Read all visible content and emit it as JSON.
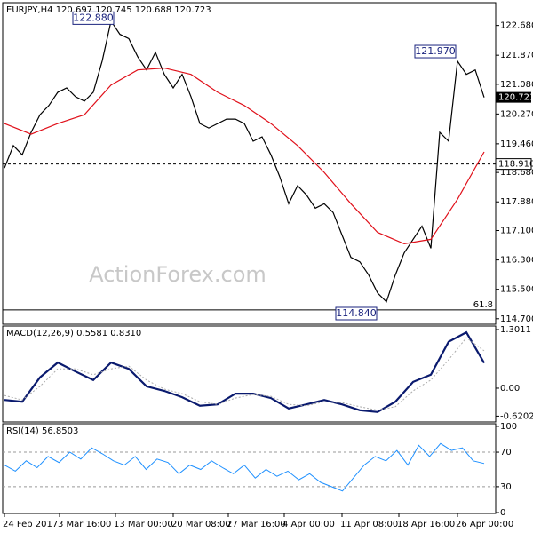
{
  "chart_data": [
    {
      "type": "line",
      "title": "EURJPY,H4  120.697 120.745 120.688 120.723",
      "ylim": [
        114.55,
        123.3
      ],
      "yticks": [
        {
          "value": 122.68,
          "label": "122.680"
        },
        {
          "value": 121.87,
          "label": "121.870"
        },
        {
          "value": 121.08,
          "label": "121.080"
        },
        {
          "value": 120.27,
          "label": "120.270"
        },
        {
          "value": 119.46,
          "label": "119.460"
        },
        {
          "value": 118.68,
          "label": "118.680"
        },
        {
          "value": 117.88,
          "label": "117.880"
        },
        {
          "value": 117.1,
          "label": "117.100"
        },
        {
          "value": 116.3,
          "label": "116.300"
        },
        {
          "value": 115.5,
          "label": "115.500"
        },
        {
          "value": 114.7,
          "label": "114.700"
        }
      ],
      "series": [
        {
          "name": "EURJPY",
          "color": "#000000",
          "values": [
            118.8,
            119.41,
            119.16,
            119.77,
            120.25,
            120.5,
            120.86,
            120.98,
            120.74,
            120.62,
            120.86,
            121.71,
            122.8,
            122.44,
            122.32,
            121.83,
            121.47,
            121.95,
            121.35,
            120.98,
            121.35,
            120.74,
            120.01,
            119.89,
            120.01,
            120.13,
            120.13,
            120.01,
            119.53,
            119.65,
            119.16,
            118.56,
            117.83,
            118.32,
            118.07,
            117.71,
            117.83,
            117.59,
            116.98,
            116.37,
            116.25,
            115.89,
            115.4,
            115.16,
            115.89,
            116.49,
            116.86,
            117.22,
            116.62,
            119.77,
            119.53,
            121.71,
            121.35,
            121.47,
            120.72
          ]
        },
        {
          "name": "MA",
          "color": "#e0101a",
          "values": [
            120.01,
            119.72,
            120.01,
            120.25,
            121.06,
            121.47,
            121.52,
            121.35,
            120.86,
            120.5,
            120.01,
            119.41,
            118.68,
            117.83,
            117.05,
            116.74,
            116.86,
            117.95,
            119.24
          ]
        }
      ],
      "annotations": [
        {
          "value": 122.88,
          "label": "122.880"
        },
        {
          "value": 121.97,
          "label": "121.970"
        },
        {
          "value": 114.84,
          "label": "114.840"
        }
      ],
      "levels": [
        {
          "value": 118.91,
          "label": "118.910"
        }
      ],
      "fib_level": {
        "name": "61.8",
        "value": 114.94
      },
      "last_price": {
        "value": 120.723,
        "label": "120.723"
      },
      "watermark": "ActionForex.com"
    },
    {
      "type": "line",
      "title": "MACD(12,26,9) 0.5581 0.8310",
      "ylim": [
        -0.75,
        1.38
      ],
      "yticks": [
        1.3011,
        {
          "value": 0,
          "label": "0.00"
        },
        -0.6202
      ],
      "series": [
        {
          "name": "MACD",
          "color": "#0a1a6e",
          "width": 2.2,
          "values": [
            -0.26,
            -0.3,
            0.24,
            0.57,
            0.37,
            0.18,
            0.57,
            0.43,
            0.04,
            -0.06,
            -0.2,
            -0.39,
            -0.36,
            -0.12,
            -0.12,
            -0.22,
            -0.45,
            -0.36,
            -0.26,
            -0.36,
            -0.49,
            -0.53,
            -0.3,
            0.14,
            0.3,
            1.03,
            1.24,
            0.56
          ]
        },
        {
          "name": "Signal",
          "color": "#aaaaaa",
          "width": 1,
          "dash": true,
          "values": [
            -0.16,
            -0.26,
            0.04,
            0.43,
            0.43,
            0.3,
            0.43,
            0.49,
            0.18,
            -0.02,
            -0.12,
            -0.3,
            -0.36,
            -0.22,
            -0.14,
            -0.18,
            -0.36,
            -0.39,
            -0.3,
            -0.32,
            -0.41,
            -0.49,
            -0.41,
            -0.06,
            0.18,
            0.63,
            1.12,
            0.83
          ]
        }
      ]
    },
    {
      "type": "line",
      "title": "RSI(14) 56.8503",
      "ylim": [
        -1,
        103
      ],
      "yticks": [
        100,
        70,
        30,
        0
      ],
      "series": [
        {
          "name": "RSI",
          "color": "#1e90ff",
          "width": 1,
          "values": [
            55,
            48,
            60,
            52,
            65,
            58,
            70,
            62,
            75,
            68,
            60,
            55,
            65,
            50,
            62,
            58,
            45,
            55,
            50,
            60,
            52,
            45,
            55,
            40,
            50,
            42,
            48,
            38,
            45,
            35,
            30,
            25,
            40,
            55,
            65,
            60,
            72,
            55,
            78,
            65,
            80,
            72,
            75,
            60,
            56.85
          ]
        }
      ],
      "dashed_levels": [
        70,
        30
      ]
    }
  ],
  "x_axis_labels": [
    "24 Feb 2017",
    "3 Mar 16:00",
    "13 Mar 00:00",
    "20 Mar 08:00",
    "27 Mar 16:00",
    "4 Apr 00:00",
    "11 Apr 08:00",
    "18 Apr 16:00",
    "26 Apr 00:00"
  ]
}
